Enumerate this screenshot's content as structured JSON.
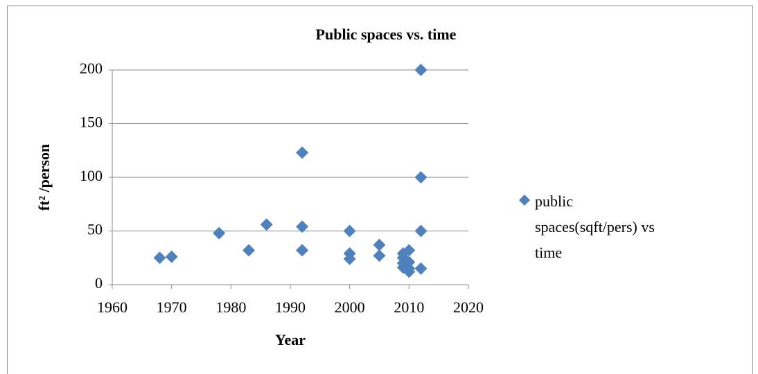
{
  "chart_data": {
    "type": "scatter",
    "title": "Public spaces vs. time",
    "xlabel": "Year",
    "ylabel": "ft² /person",
    "series": [
      {
        "name": "public spaces(sqft/pers) vs time",
        "color": "#4f81bd",
        "x": [
          1968,
          1970,
          1978,
          1983,
          1986,
          1992,
          1992,
          1992,
          2000,
          2000,
          2000,
          2005,
          2005,
          2009,
          2009,
          2009,
          2009,
          2010,
          2010,
          2010,
          2010,
          2012,
          2012,
          2012,
          2012
        ],
        "values": [
          25,
          26,
          48,
          32,
          56,
          123,
          54,
          32,
          50,
          29,
          24,
          37,
          27,
          25,
          20,
          16,
          29,
          32,
          21,
          15,
          12,
          200,
          100,
          50,
          15
        ]
      }
    ],
    "xlim": [
      1960,
      2020
    ],
    "xticks": [
      1960,
      1970,
      1980,
      1990,
      2000,
      2010,
      2020
    ],
    "ylim": [
      0,
      200
    ],
    "yticks": [
      0,
      50,
      100,
      150,
      200
    ],
    "grid": true,
    "legend": "right"
  }
}
